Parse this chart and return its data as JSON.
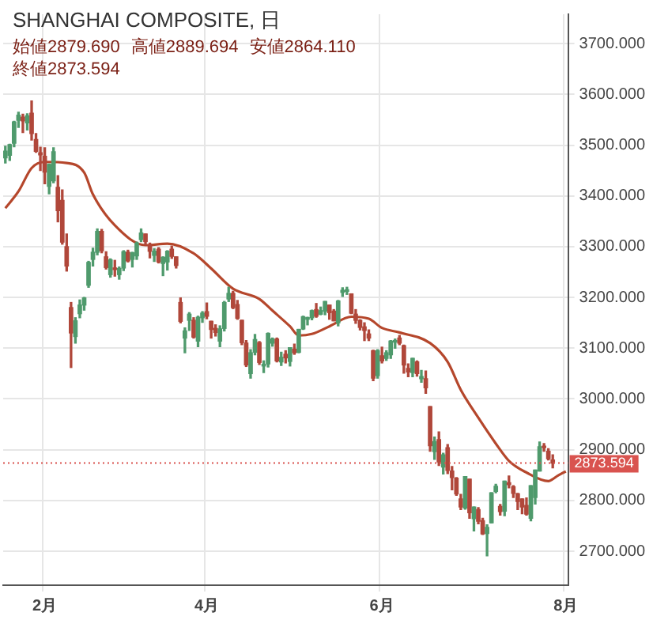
{
  "chart_data": {
    "type": "candlestick",
    "title": "SHANGHAI COMPOSITE, 日",
    "annotations": [
      "始値2879.690",
      "高値2889.694",
      "安値2864.110",
      "終値2873.594"
    ],
    "categories": [
      null,
      null,
      null,
      null,
      null,
      null,
      null,
      null,
      null,
      "2月",
      null,
      null,
      null,
      null,
      null,
      null,
      null,
      null,
      null,
      null,
      null,
      null,
      null,
      null,
      null,
      null,
      null,
      null,
      null,
      null,
      null,
      null,
      null,
      null,
      null,
      null,
      null,
      null,
      null,
      null,
      null,
      null,
      null,
      null,
      null,
      null,
      "4月",
      null,
      null,
      null,
      null,
      null,
      null,
      null,
      null,
      null,
      null,
      null,
      null,
      null,
      null,
      null,
      null,
      null,
      null,
      null,
      null,
      null,
      null,
      null,
      null,
      null,
      null,
      null,
      null,
      null,
      null,
      null,
      null,
      null,
      null,
      null,
      null,
      null,
      null,
      null,
      "6月",
      null,
      null,
      null,
      null,
      null,
      null,
      null,
      null,
      null,
      null,
      null,
      null,
      null,
      null,
      null,
      null,
      null,
      null,
      null,
      null,
      null,
      null,
      null,
      null,
      null,
      null,
      null,
      null,
      null,
      null,
      null,
      null,
      null,
      null,
      null,
      null,
      null,
      null,
      null,
      null,
      null,
      "8月"
    ],
    "ohlc": [
      [
        3475,
        3498,
        3465,
        3488
      ],
      [
        3480,
        3502,
        3470,
        3501
      ],
      [
        3504,
        3547,
        3497,
        3546
      ],
      [
        3549,
        3565,
        3535,
        3559
      ],
      [
        3555,
        3561,
        3525,
        3548
      ],
      [
        3544,
        3562,
        3530,
        3558
      ],
      [
        3563,
        3587,
        3510,
        3523
      ],
      [
        3511,
        3523,
        3486,
        3488
      ],
      [
        3485,
        3496,
        3450,
        3481
      ],
      [
        3478,
        3495,
        3424,
        3447
      ],
      [
        3419,
        3463,
        3404,
        3462
      ],
      [
        3430,
        3495,
        3426,
        3487
      ],
      [
        3417,
        3440,
        3349,
        3371
      ],
      [
        3391,
        3412,
        3305,
        3309
      ],
      [
        3300,
        3325,
        3252,
        3262
      ],
      [
        3180,
        3190,
        3062,
        3130
      ],
      [
        3123,
        3160,
        3110,
        3154
      ],
      [
        3168,
        3195,
        3160,
        3185
      ],
      [
        3185,
        3200,
        3175,
        3199
      ],
      [
        3224,
        3271,
        3220,
        3269
      ],
      [
        3275,
        3297,
        3262,
        3289
      ],
      [
        3289,
        3335,
        3284,
        3330
      ],
      [
        3330,
        3334,
        3288,
        3292
      ],
      [
        3280,
        3290,
        3256,
        3259
      ],
      [
        3245,
        3276,
        3240,
        3274
      ],
      [
        3256,
        3273,
        3242,
        3255
      ],
      [
        3245,
        3260,
        3236,
        3257
      ],
      [
        3258,
        3292,
        3253,
        3290
      ],
      [
        3289,
        3293,
        3270,
        3272
      ],
      [
        3275,
        3289,
        3260,
        3288
      ],
      [
        3282,
        3309,
        3275,
        3307
      ],
      [
        3314,
        3335,
        3310,
        3327
      ],
      [
        3325,
        3325,
        3303,
        3310
      ],
      [
        3302,
        3307,
        3278,
        3291
      ],
      [
        3283,
        3296,
        3271,
        3291
      ],
      [
        3295,
        3298,
        3268,
        3270
      ],
      [
        3267,
        3280,
        3243,
        3279
      ],
      [
        3270,
        3292,
        3254,
        3291
      ],
      [
        3295,
        3301,
        3277,
        3281
      ],
      [
        3280,
        3280,
        3258,
        3263
      ],
      [
        3190,
        3199,
        3150,
        3153
      ],
      [
        3120,
        3140,
        3091,
        3134
      ],
      [
        3155,
        3170,
        3135,
        3167
      ],
      [
        3155,
        3160,
        3120,
        3122
      ],
      [
        3114,
        3163,
        3103,
        3161
      ],
      [
        3160,
        3172,
        3151,
        3169
      ],
      [
        3172,
        3189,
        3158,
        3163
      ],
      [
        3153,
        3153,
        3120,
        3137
      ],
      [
        3139,
        3146,
        3124,
        3131
      ],
      [
        3114,
        3144,
        3103,
        3138
      ],
      [
        3139,
        3192,
        3134,
        3190
      ],
      [
        3197,
        3220,
        3192,
        3208
      ],
      [
        3208,
        3212,
        3178,
        3180
      ],
      [
        3186,
        3194,
        3157,
        3159
      ],
      [
        3155,
        3155,
        3107,
        3111
      ],
      [
        3110,
        3115,
        3064,
        3067
      ],
      [
        3050,
        3097,
        3041,
        3091
      ],
      [
        3092,
        3127,
        3087,
        3117
      ],
      [
        3111,
        3113,
        3068,
        3072
      ],
      [
        3065,
        3075,
        3052,
        3068
      ],
      [
        3069,
        3130,
        3063,
        3129
      ],
      [
        3110,
        3120,
        3104,
        3118
      ],
      [
        3118,
        3120,
        3073,
        3075
      ],
      [
        3073,
        3092,
        3066,
        3082
      ],
      [
        3088,
        3095,
        3071,
        3081
      ],
      [
        3074,
        3101,
        3065,
        3101
      ],
      [
        3098,
        3108,
        3088,
        3091
      ],
      [
        3092,
        3137,
        3091,
        3137
      ],
      [
        3138,
        3163,
        3137,
        3162
      ],
      [
        3157,
        3161,
        3146,
        3159
      ],
      [
        3160,
        3175,
        3156,
        3174
      ],
      [
        3176,
        3188,
        3161,
        3163
      ],
      [
        3167,
        3181,
        3166,
        3174
      ],
      [
        3173,
        3192,
        3166,
        3192
      ],
      [
        3185,
        3185,
        3157,
        3170
      ],
      [
        3173,
        3176,
        3154,
        3154
      ],
      [
        3150,
        3194,
        3144,
        3193
      ],
      [
        3210,
        3219,
        3202,
        3214
      ],
      [
        3212,
        3220,
        3206,
        3214
      ],
      [
        3207,
        3207,
        3168,
        3169
      ],
      [
        3167,
        3176,
        3149,
        3155
      ],
      [
        3155,
        3156,
        3136,
        3141
      ],
      [
        3142,
        3150,
        3115,
        3135
      ],
      [
        3128,
        3136,
        3115,
        3120
      ],
      [
        3095,
        3096,
        3036,
        3041
      ],
      [
        3046,
        3097,
        3041,
        3095
      ],
      [
        3085,
        3102,
        3071,
        3075
      ],
      [
        3080,
        3095,
        3076,
        3091
      ],
      [
        3087,
        3115,
        3080,
        3114
      ],
      [
        3112,
        3118,
        3100,
        3115
      ],
      [
        3120,
        3125,
        3107,
        3110
      ],
      [
        3105,
        3106,
        3051,
        3067
      ],
      [
        3060,
        3069,
        3044,
        3053
      ],
      [
        3052,
        3080,
        3044,
        3080
      ],
      [
        3073,
        3075,
        3045,
        3050
      ],
      [
        3040,
        3056,
        3033,
        3044
      ],
      [
        3040,
        3055,
        3011,
        3022
      ],
      [
        2985,
        2985,
        2897,
        2908
      ],
      [
        2896,
        2925,
        2881,
        2916
      ],
      [
        2920,
        2935,
        2869,
        2876
      ],
      [
        2866,
        2893,
        2852,
        2890
      ],
      [
        2904,
        2910,
        2853,
        2859
      ],
      [
        2858,
        2867,
        2821,
        2845
      ],
      [
        2844,
        2845,
        2810,
        2813
      ],
      [
        2803,
        2812,
        2782,
        2787
      ],
      [
        2785,
        2847,
        2783,
        2847
      ],
      [
        2842,
        2842,
        2765,
        2776
      ],
      [
        2764,
        2787,
        2740,
        2787
      ],
      [
        2782,
        2786,
        2754,
        2759
      ],
      [
        2760,
        2765,
        2733,
        2734
      ],
      [
        2735,
        2752,
        2691,
        2747
      ],
      [
        2756,
        2815,
        2756,
        2815
      ],
      [
        2818,
        2832,
        2815,
        2828
      ],
      [
        2788,
        2792,
        2771,
        2778
      ],
      [
        2779,
        2838,
        2770,
        2838
      ],
      [
        2835,
        2848,
        2825,
        2831
      ],
      [
        2827,
        2829,
        2806,
        2814
      ],
      [
        2813,
        2814,
        2782,
        2798
      ],
      [
        2803,
        2803,
        2774,
        2787
      ],
      [
        2790,
        2805,
        2771,
        2773
      ],
      [
        2765,
        2829,
        2760,
        2829
      ],
      [
        2806,
        2860,
        2793,
        2860
      ],
      [
        2858,
        2915,
        2858,
        2906
      ],
      [
        2905,
        2912,
        2897,
        2904
      ],
      [
        2897,
        2902,
        2880,
        2882
      ],
      [
        2879.69,
        2889.694,
        2864.11,
        2873.594
      ],
      null,
      null,
      null
    ],
    "colors": [
      "#4f9a6c",
      "#4f9a6c",
      "#4f9a6c",
      "#4f9a6c",
      "#b0473a",
      "#4f9a6c",
      "#b0473a",
      "#b0473a",
      "#b0473a",
      "#b0473a",
      "#4f9a6c",
      "#4f9a6c",
      "#b0473a",
      "#b0473a",
      "#b0473a",
      "#b0473a",
      "#4f9a6c",
      "#4f9a6c",
      "#4f9a6c",
      "#4f9a6c",
      "#4f9a6c",
      "#4f9a6c",
      "#b0473a",
      "#b0473a",
      "#4f9a6c",
      "#b0473a",
      "#4f9a6c",
      "#4f9a6c",
      "#b0473a",
      "#4f9a6c",
      "#4f9a6c",
      "#4f9a6c",
      "#b0473a",
      "#b0473a",
      "#4f9a6c",
      "#b0473a",
      "#4f9a6c",
      "#4f9a6c",
      "#b0473a",
      "#b0473a",
      "#b0473a",
      "#4f9a6c",
      "#4f9a6c",
      "#b0473a",
      "#4f9a6c",
      "#4f9a6c",
      "#b0473a",
      "#b0473a",
      "#b0473a",
      "#4f9a6c",
      "#4f9a6c",
      "#4f9a6c",
      "#b0473a",
      "#b0473a",
      "#b0473a",
      "#b0473a",
      "#4f9a6c",
      "#4f9a6c",
      "#b0473a",
      "#4f9a6c",
      "#4f9a6c",
      "#4f9a6c",
      "#b0473a",
      "#4f9a6c",
      "#b0473a",
      "#4f9a6c",
      "#b0473a",
      "#4f9a6c",
      "#4f9a6c",
      "#4f9a6c",
      "#4f9a6c",
      "#b0473a",
      "#4f9a6c",
      "#4f9a6c",
      "#b0473a",
      "#b0473a",
      "#4f9a6c",
      "#4f9a6c",
      "#4f9a6c",
      "#b0473a",
      "#b0473a",
      "#b0473a",
      "#b0473a",
      "#b0473a",
      "#b0473a",
      "#4f9a6c",
      "#b0473a",
      "#4f9a6c",
      "#4f9a6c",
      "#4f9a6c",
      "#b0473a",
      "#b0473a",
      "#b0473a",
      "#4f9a6c",
      "#b0473a",
      "#4f9a6c",
      "#b0473a",
      "#b0473a",
      "#4f9a6c",
      "#b0473a",
      "#4f9a6c",
      "#b0473a",
      "#b0473a",
      "#b0473a",
      "#b0473a",
      "#4f9a6c",
      "#b0473a",
      "#4f9a6c",
      "#b0473a",
      "#b0473a",
      "#4f9a6c",
      "#4f9a6c",
      "#4f9a6c",
      "#b0473a",
      "#4f9a6c",
      "#b0473a",
      "#b0473a",
      "#b0473a",
      "#b0473a",
      "#b0473a",
      "#4f9a6c",
      "#4f9a6c",
      "#4f9a6c",
      "#b0473a",
      "#b0473a",
      "#b0473a",
      null,
      null,
      null
    ],
    "series": [
      {
        "type": "line",
        "color": "#b5472c",
        "values": [
          3376,
          null,
          null,
          3409,
          null,
          null,
          3455,
          null,
          null,
          3467,
          null,
          null,
          null,
          null,
          3465,
          null,
          null,
          null,
          3446,
          null,
          3403,
          null,
          null,
          null,
          null,
          3342,
          null,
          null,
          null,
          null,
          null,
          null,
          3303,
          null,
          null,
          null,
          null,
          3306,
          null,
          null,
          null,
          null,
          null,
          3287,
          null,
          null,
          null,
          3257,
          null,
          null,
          null,
          null,
          3217,
          null,
          null,
          null,
          null,
          null,
          3197,
          null,
          null,
          3174,
          null,
          null,
          null,
          3143,
          null,
          3125,
          null,
          null,
          3128,
          null,
          null,
          null,
          3143,
          null,
          null,
          null,
          null,
          3162,
          null,
          null,
          null,
          3158,
          null,
          null,
          3140,
          null,
          null,
          null,
          3131,
          null,
          null,
          null,
          null,
          null,
          null,
          3110,
          null,
          null,
          null,
          3073,
          null,
          null,
          3018,
          null,
          null,
          null,
          2963,
          null,
          null,
          null,
          2912,
          null,
          null,
          2878,
          null,
          null,
          null,
          2855,
          null,
          null,
          null,
          null,
          2838,
          2842,
          2848,
          2853,
          2857
        ]
      }
    ],
    "ylim": [
      2633,
      3758
    ],
    "yticks": [
      {
        "value": 2700,
        "label": "2700.000"
      },
      {
        "value": 2800,
        "label": "2800.000"
      },
      {
        "value": 2900,
        "label": "2900.000"
      },
      {
        "value": 3000,
        "label": "3000.000"
      },
      {
        "value": 3100,
        "label": "3100.000"
      },
      {
        "value": 3200,
        "label": "3200.000"
      },
      {
        "value": 3300,
        "label": "3300.000"
      },
      {
        "value": 3400,
        "label": "3400.000"
      },
      {
        "value": 3500,
        "label": "3500.000"
      },
      {
        "value": 3600,
        "label": "3600.000"
      },
      {
        "value": 3700,
        "label": "3700.000"
      }
    ],
    "ref_lines": [
      {
        "axis": "y",
        "value": 2873.594,
        "label": "2873.594",
        "color": "#d9534f",
        "line_style": "dotted"
      }
    ],
    "grid": true
  }
}
